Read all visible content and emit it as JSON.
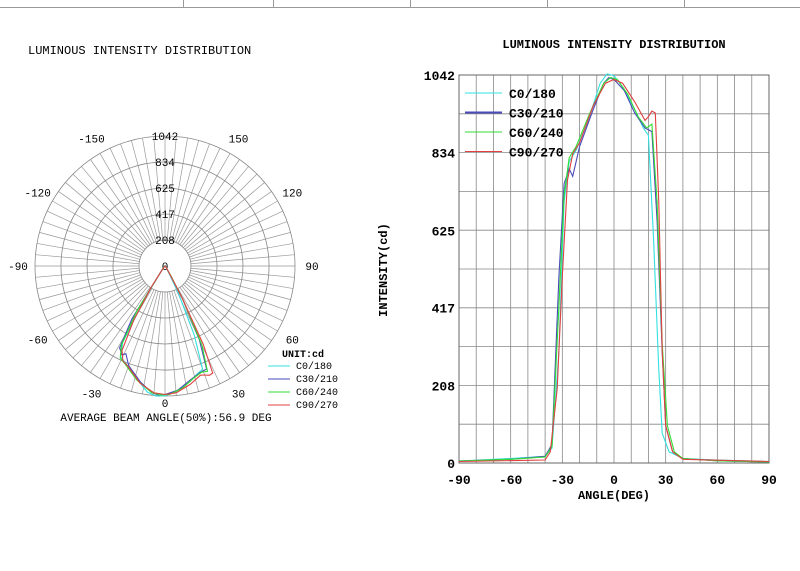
{
  "chart_data": [
    {
      "type": "polar",
      "title": "LUMINOUS INTENSITY DISTRIBUTION",
      "radial_ticks": [
        0,
        208,
        417,
        625,
        834,
        1042
      ],
      "angle_labels": [
        "0",
        "30",
        "60",
        "90",
        "120",
        "150",
        "-150",
        "-120",
        "-90",
        "-60",
        "-30"
      ],
      "unit_label": "UNIT:cd",
      "footer": "AVERAGE BEAM ANGLE(50%):56.9 DEG",
      "legend_placement": "bottom-right",
      "grid": true
    },
    {
      "type": "line",
      "title": "LUMINOUS INTENSITY DISTRIBUTION",
      "xlabel": "ANGLE(DEG)",
      "ylabel": "INTENSITY(cd)",
      "xlim": [
        -90,
        90
      ],
      "ylim": [
        0,
        1042
      ],
      "xticks": [
        -90,
        -60,
        -30,
        0,
        30,
        60,
        90
      ],
      "yticks": [
        0,
        208,
        417,
        625,
        834,
        1042
      ],
      "grid": true,
      "legend_placement": "top-left",
      "series": [
        {
          "name": "C0/180",
          "color": "#33e0e0",
          "points": [
            [
              -90,
              5
            ],
            [
              -60,
              12
            ],
            [
              -40,
              18
            ],
            [
              -36,
              40
            ],
            [
              -32,
              300
            ],
            [
              -29,
              700
            ],
            [
              -26,
              810
            ],
            [
              -22,
              840
            ],
            [
              -15,
              920
            ],
            [
              -8,
              1020
            ],
            [
              -4,
              1045
            ],
            [
              0,
              1040
            ],
            [
              5,
              1010
            ],
            [
              12,
              950
            ],
            [
              17,
              900
            ],
            [
              20,
              880
            ],
            [
              23,
              600
            ],
            [
              26,
              250
            ],
            [
              28,
              80
            ],
            [
              32,
              30
            ],
            [
              40,
              12
            ],
            [
              60,
              8
            ],
            [
              90,
              4
            ]
          ]
        },
        {
          "name": "C30/210",
          "color": "#4a4ab8",
          "points": [
            [
              -90,
              5
            ],
            [
              -60,
              10
            ],
            [
              -40,
              18
            ],
            [
              -36,
              50
            ],
            [
              -32,
              500
            ],
            [
              -29,
              750
            ],
            [
              -26,
              790
            ],
            [
              -24,
              770
            ],
            [
              -20,
              850
            ],
            [
              -12,
              950
            ],
            [
              -6,
              1020
            ],
            [
              -3,
              1035
            ],
            [
              0,
              1030
            ],
            [
              6,
              1000
            ],
            [
              12,
              940
            ],
            [
              18,
              900
            ],
            [
              22,
              890
            ],
            [
              25,
              650
            ],
            [
              28,
              300
            ],
            [
              30,
              100
            ],
            [
              34,
              30
            ],
            [
              40,
              12
            ],
            [
              60,
              6
            ],
            [
              90,
              3
            ]
          ]
        },
        {
          "name": "C60/240",
          "color": "#33dd33",
          "points": [
            [
              -90,
              5
            ],
            [
              -60,
              10
            ],
            [
              -40,
              16
            ],
            [
              -36,
              45
            ],
            [
              -32,
              420
            ],
            [
              -29,
              720
            ],
            [
              -26,
              820
            ],
            [
              -22,
              850
            ],
            [
              -14,
              940
            ],
            [
              -6,
              1020
            ],
            [
              -2,
              1035
            ],
            [
              2,
              1030
            ],
            [
              8,
              990
            ],
            [
              14,
              930
            ],
            [
              19,
              900
            ],
            [
              22,
              910
            ],
            [
              25,
              700
            ],
            [
              28,
              320
            ],
            [
              31,
              100
            ],
            [
              35,
              30
            ],
            [
              40,
              12
            ],
            [
              60,
              6
            ],
            [
              90,
              3
            ]
          ]
        },
        {
          "name": "C90/270",
          "color": "#e04040",
          "points": [
            [
              -90,
              4
            ],
            [
              -40,
              8
            ],
            [
              -37,
              30
            ],
            [
              -33,
              200
            ],
            [
              -30,
              500
            ],
            [
              -27,
              760
            ],
            [
              -24,
              830
            ],
            [
              -20,
              860
            ],
            [
              -12,
              960
            ],
            [
              -5,
              1020
            ],
            [
              0,
              1030
            ],
            [
              5,
              1020
            ],
            [
              12,
              970
            ],
            [
              18,
              920
            ],
            [
              20,
              930
            ],
            [
              22,
              945
            ],
            [
              24,
              940
            ],
            [
              26,
              700
            ],
            [
              28,
              300
            ],
            [
              30,
              100
            ],
            [
              34,
              30
            ],
            [
              40,
              10
            ],
            [
              90,
              4
            ]
          ]
        }
      ]
    }
  ]
}
